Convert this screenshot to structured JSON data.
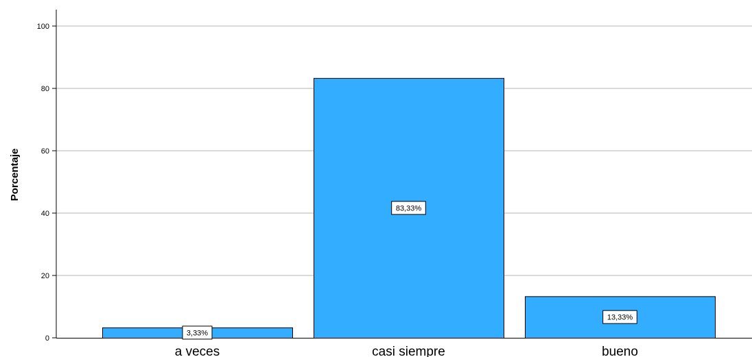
{
  "chart_data": {
    "type": "bar",
    "categories": [
      "a veces",
      "casi siempre",
      "bueno"
    ],
    "values": [
      3.33,
      83.33,
      13.33
    ],
    "data_labels": [
      "3,33%",
      "83,33%",
      "13,33%"
    ],
    "ylabel": "Porcentaje",
    "xlabel": "",
    "ylim": [
      0,
      100
    ],
    "yticks": [
      0,
      20,
      40,
      60,
      80,
      100
    ],
    "grid": true,
    "colors": {
      "bar_fill": "#33adff",
      "bar_stroke": "#000000",
      "grid": "#b5b5b5",
      "label_box_fill": "#ffffff"
    }
  }
}
